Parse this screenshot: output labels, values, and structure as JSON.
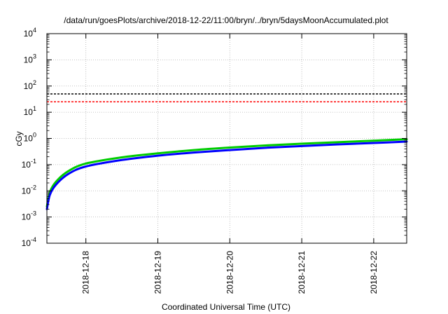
{
  "chart_data": {
    "type": "line",
    "title": "/data/run/goesPlots/archive/2018-12-22/11:00/bryn/../bryn/5daysMoonAccumulated.plot",
    "xlabel": "Coordinated Universal Time (UTC)",
    "ylabel": "cGy",
    "y_scale": "log",
    "ylim": [
      0.0001,
      10000
    ],
    "xlim": [
      "2018-12-17 11:00",
      "2018-12-22 11:00"
    ],
    "x_ticks": [
      "2018-12-18",
      "2018-12-19",
      "2018-12-20",
      "2018-12-21",
      "2018-12-22"
    ],
    "y_ticks": [
      {
        "base": "10",
        "exp": "4"
      },
      {
        "base": "10",
        "exp": "3"
      },
      {
        "base": "10",
        "exp": "2"
      },
      {
        "base": "10",
        "exp": "1"
      },
      {
        "base": "10",
        "exp": "0"
      },
      {
        "base": "10",
        "exp": "-1"
      },
      {
        "base": "10",
        "exp": "-2"
      },
      {
        "base": "10",
        "exp": "-3"
      },
      {
        "base": "10",
        "exp": "-4"
      }
    ],
    "grid": true,
    "reference_lines": [
      {
        "y": 50,
        "color": "#000000",
        "style": "dashed"
      },
      {
        "y": 25,
        "color": "#ff0000",
        "style": "dashed"
      }
    ],
    "series": [
      {
        "color": "#00cc00",
        "x": [
          "2018-12-17 11:00",
          "2018-12-17 12:00",
          "2018-12-17 14:00",
          "2018-12-17 18:00",
          "2018-12-18 00:00",
          "2018-12-18 12:00",
          "2018-12-19 00:00",
          "2018-12-19 12:00",
          "2018-12-20 00:00",
          "2018-12-20 12:00",
          "2018-12-21 00:00",
          "2018-12-21 12:00",
          "2018-12-22 00:00",
          "2018-12-22 11:00"
        ],
        "y": [
          0.0025,
          0.009,
          0.022,
          0.055,
          0.11,
          0.19,
          0.27,
          0.36,
          0.45,
          0.54,
          0.63,
          0.72,
          0.82,
          0.93
        ]
      },
      {
        "color": "#0000ff",
        "x": [
          "2018-12-17 11:00",
          "2018-12-17 12:00",
          "2018-12-17 14:00",
          "2018-12-17 18:00",
          "2018-12-18 00:00",
          "2018-12-18 12:00",
          "2018-12-19 00:00",
          "2018-12-19 12:00",
          "2018-12-20 00:00",
          "2018-12-20 12:00",
          "2018-12-21 00:00",
          "2018-12-21 12:00",
          "2018-12-22 00:00",
          "2018-12-22 11:00"
        ],
        "y": [
          0.002,
          0.007,
          0.017,
          0.043,
          0.085,
          0.15,
          0.22,
          0.29,
          0.36,
          0.44,
          0.51,
          0.59,
          0.67,
          0.76
        ]
      }
    ]
  }
}
